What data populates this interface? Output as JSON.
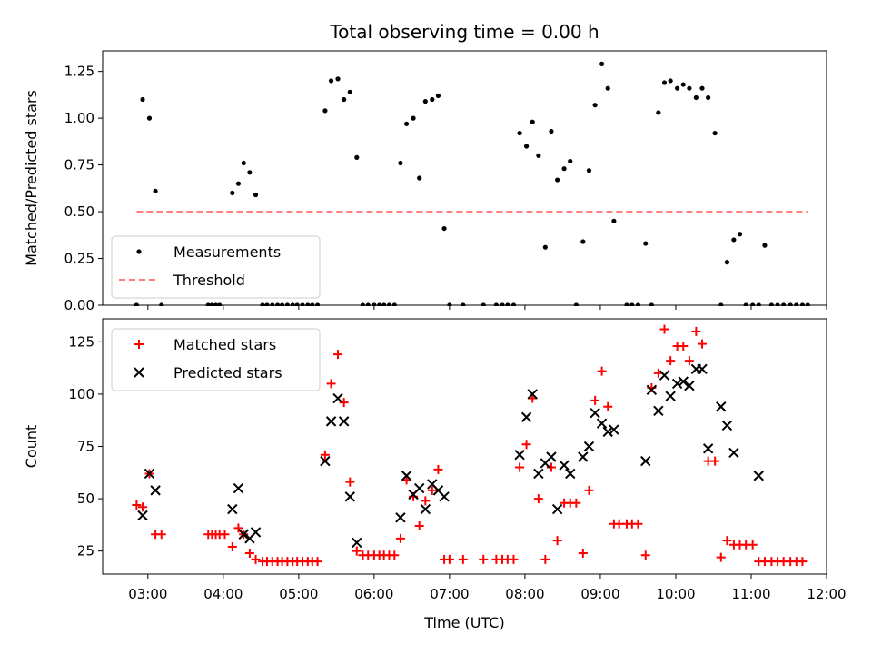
{
  "chart_data": [
    {
      "type": "scatter",
      "title": "Total observing time = 0.00 h",
      "ylabel": "Matched/Predicted stars",
      "xlabel": "",
      "xlim": [
        2.4,
        12.0
      ],
      "ylim": [
        0,
        1.36
      ],
      "yticks": [
        "0.00",
        "0.25",
        "0.50",
        "0.75",
        "1.00",
        "1.25"
      ],
      "legend": {
        "placement": "lower-left",
        "entries": [
          "Measurements",
          "Threshold"
        ]
      },
      "series": [
        {
          "name": "Measurements",
          "marker": "dot",
          "color": "#000000",
          "points": [
            [
              2.85,
              0
            ],
            [
              2.93,
              1.1
            ],
            [
              3.02,
              1.0
            ],
            [
              3.1,
              0.61
            ],
            [
              3.18,
              0
            ],
            [
              3.8,
              0
            ],
            [
              3.85,
              0
            ],
            [
              3.9,
              0
            ],
            [
              3.95,
              0
            ],
            [
              4.12,
              0.6
            ],
            [
              4.2,
              0.65
            ],
            [
              4.27,
              0.76
            ],
            [
              4.35,
              0.71
            ],
            [
              4.43,
              0.59
            ],
            [
              4.52,
              0
            ],
            [
              4.58,
              0
            ],
            [
              4.65,
              0
            ],
            [
              4.72,
              0
            ],
            [
              4.78,
              0
            ],
            [
              4.85,
              0
            ],
            [
              4.92,
              0
            ],
            [
              4.98,
              0
            ],
            [
              5.05,
              0
            ],
            [
              5.12,
              0
            ],
            [
              5.18,
              0
            ],
            [
              5.25,
              0
            ],
            [
              5.35,
              1.04
            ],
            [
              5.43,
              1.2
            ],
            [
              5.52,
              1.21
            ],
            [
              5.6,
              1.1
            ],
            [
              5.68,
              1.14
            ],
            [
              5.77,
              0.79
            ],
            [
              5.85,
              0
            ],
            [
              5.92,
              0
            ],
            [
              6.0,
              0
            ],
            [
              6.07,
              0
            ],
            [
              6.13,
              0
            ],
            [
              6.2,
              0
            ],
            [
              6.27,
              0
            ],
            [
              6.35,
              0.76
            ],
            [
              6.43,
              0.97
            ],
            [
              6.52,
              1.0
            ],
            [
              6.6,
              0.68
            ],
            [
              6.68,
              1.09
            ],
            [
              6.77,
              1.1
            ],
            [
              6.85,
              1.12
            ],
            [
              6.93,
              0.41
            ],
            [
              7.0,
              0
            ],
            [
              7.18,
              0
            ],
            [
              7.45,
              0
            ],
            [
              7.62,
              0
            ],
            [
              7.7,
              0
            ],
            [
              7.77,
              0
            ],
            [
              7.85,
              0
            ],
            [
              7.93,
              0.92
            ],
            [
              8.02,
              0.85
            ],
            [
              8.1,
              0.98
            ],
            [
              8.18,
              0.8
            ],
            [
              8.27,
              0.31
            ],
            [
              8.35,
              0.93
            ],
            [
              8.43,
              0.67
            ],
            [
              8.52,
              0.73
            ],
            [
              8.6,
              0.77
            ],
            [
              8.68,
              0
            ],
            [
              8.77,
              0.34
            ],
            [
              8.85,
              0.72
            ],
            [
              8.93,
              1.07
            ],
            [
              9.02,
              1.29
            ],
            [
              9.1,
              1.16
            ],
            [
              9.18,
              0.45
            ],
            [
              9.35,
              0
            ],
            [
              9.42,
              0
            ],
            [
              9.5,
              0
            ],
            [
              9.6,
              0.33
            ],
            [
              9.68,
              0
            ],
            [
              9.77,
              1.03
            ],
            [
              9.85,
              1.19
            ],
            [
              9.93,
              1.2
            ],
            [
              10.02,
              1.16
            ],
            [
              10.1,
              1.18
            ],
            [
              10.18,
              1.16
            ],
            [
              10.27,
              1.11
            ],
            [
              10.35,
              1.16
            ],
            [
              10.43,
              1.11
            ],
            [
              10.52,
              0.92
            ],
            [
              10.6,
              0
            ],
            [
              10.68,
              0.23
            ],
            [
              10.77,
              0.35
            ],
            [
              10.85,
              0.38
            ],
            [
              10.93,
              0
            ],
            [
              11.02,
              0
            ],
            [
              11.1,
              0
            ],
            [
              11.18,
              0.32
            ],
            [
              11.27,
              0
            ],
            [
              11.35,
              0
            ],
            [
              11.43,
              0
            ],
            [
              11.52,
              0
            ],
            [
              11.6,
              0
            ],
            [
              11.68,
              0
            ],
            [
              11.75,
              0
            ]
          ]
        },
        {
          "name": "Threshold",
          "marker": "dashed-line",
          "color": "#ff7f7f",
          "points": [
            [
              2.85,
              0.5
            ],
            [
              11.75,
              0.5
            ]
          ]
        }
      ]
    },
    {
      "type": "scatter",
      "title": "",
      "ylabel": "Count",
      "xlabel": "Time (UTC)",
      "xlim": [
        2.4,
        12.0
      ],
      "ylim": [
        14,
        136
      ],
      "yticks": [
        "25",
        "50",
        "75",
        "100",
        "125"
      ],
      "xticks": [
        "03:00",
        "04:00",
        "05:00",
        "06:00",
        "07:00",
        "08:00",
        "09:00",
        "10:00",
        "11:00",
        "12:00"
      ],
      "legend": {
        "placement": "upper-left",
        "entries": [
          "Matched stars",
          "Predicted stars"
        ]
      },
      "series": [
        {
          "name": "Matched stars",
          "marker": "plus",
          "color": "#ff0000",
          "points": [
            [
              2.85,
              47
            ],
            [
              2.93,
              46
            ],
            [
              3.02,
              62
            ],
            [
              3.1,
              33
            ],
            [
              3.18,
              33
            ],
            [
              3.8,
              33
            ],
            [
              3.85,
              33
            ],
            [
              3.9,
              33
            ],
            [
              3.95,
              33
            ],
            [
              4.02,
              33
            ],
            [
              4.12,
              27
            ],
            [
              4.2,
              36
            ],
            [
              4.27,
              33
            ],
            [
              4.35,
              24
            ],
            [
              4.43,
              21
            ],
            [
              4.52,
              20
            ],
            [
              4.58,
              20
            ],
            [
              4.65,
              20
            ],
            [
              4.72,
              20
            ],
            [
              4.78,
              20
            ],
            [
              4.85,
              20
            ],
            [
              4.92,
              20
            ],
            [
              4.98,
              20
            ],
            [
              5.05,
              20
            ],
            [
              5.12,
              20
            ],
            [
              5.18,
              20
            ],
            [
              5.25,
              20
            ],
            [
              5.35,
              71
            ],
            [
              5.43,
              105
            ],
            [
              5.52,
              119
            ],
            [
              5.6,
              96
            ],
            [
              5.68,
              58
            ],
            [
              5.77,
              25
            ],
            [
              5.85,
              23
            ],
            [
              5.92,
              23
            ],
            [
              6.0,
              23
            ],
            [
              6.07,
              23
            ],
            [
              6.13,
              23
            ],
            [
              6.2,
              23
            ],
            [
              6.27,
              23
            ],
            [
              6.35,
              31
            ],
            [
              6.43,
              59
            ],
            [
              6.52,
              51
            ],
            [
              6.6,
              37
            ],
            [
              6.68,
              49
            ],
            [
              6.77,
              54
            ],
            [
              6.85,
              64
            ],
            [
              6.93,
              21
            ],
            [
              7.0,
              21
            ],
            [
              7.18,
              21
            ],
            [
              7.45,
              21
            ],
            [
              7.62,
              21
            ],
            [
              7.7,
              21
            ],
            [
              7.77,
              21
            ],
            [
              7.85,
              21
            ],
            [
              7.93,
              65
            ],
            [
              8.02,
              76
            ],
            [
              8.1,
              98
            ],
            [
              8.18,
              50
            ],
            [
              8.27,
              21
            ],
            [
              8.35,
              65
            ],
            [
              8.43,
              30
            ],
            [
              8.52,
              48
            ],
            [
              8.6,
              48
            ],
            [
              8.68,
              48
            ],
            [
              8.77,
              24
            ],
            [
              8.85,
              54
            ],
            [
              8.93,
              97
            ],
            [
              9.02,
              111
            ],
            [
              9.1,
              94
            ],
            [
              9.18,
              38
            ],
            [
              9.25,
              38
            ],
            [
              9.35,
              38
            ],
            [
              9.42,
              38
            ],
            [
              9.5,
              38
            ],
            [
              9.6,
              23
            ],
            [
              9.68,
              103
            ],
            [
              9.77,
              110
            ],
            [
              9.85,
              131
            ],
            [
              9.93,
              116
            ],
            [
              10.02,
              123
            ],
            [
              10.1,
              123
            ],
            [
              10.18,
              116
            ],
            [
              10.27,
              130
            ],
            [
              10.35,
              124
            ],
            [
              10.43,
              68
            ],
            [
              10.52,
              68
            ],
            [
              10.6,
              22
            ],
            [
              10.68,
              30
            ],
            [
              10.77,
              28
            ],
            [
              10.85,
              28
            ],
            [
              10.93,
              28
            ],
            [
              11.02,
              28
            ],
            [
              11.1,
              20
            ],
            [
              11.18,
              20
            ],
            [
              11.27,
              20
            ],
            [
              11.35,
              20
            ],
            [
              11.43,
              20
            ],
            [
              11.52,
              20
            ],
            [
              11.6,
              20
            ],
            [
              11.68,
              20
            ]
          ]
        },
        {
          "name": "Predicted stars",
          "marker": "x",
          "color": "#000000",
          "points": [
            [
              2.93,
              42
            ],
            [
              3.02,
              62
            ],
            [
              3.1,
              54
            ],
            [
              4.12,
              45
            ],
            [
              4.2,
              55
            ],
            [
              4.27,
              33
            ],
            [
              4.35,
              31
            ],
            [
              4.43,
              34
            ],
            [
              5.35,
              68
            ],
            [
              5.43,
              87
            ],
            [
              5.52,
              98
            ],
            [
              5.6,
              87
            ],
            [
              5.68,
              51
            ],
            [
              5.77,
              29
            ],
            [
              6.35,
              41
            ],
            [
              6.43,
              61
            ],
            [
              6.52,
              52
            ],
            [
              6.6,
              55
            ],
            [
              6.68,
              45
            ],
            [
              6.77,
              57
            ],
            [
              6.85,
              54
            ],
            [
              6.93,
              51
            ],
            [
              7.93,
              71
            ],
            [
              8.02,
              89
            ],
            [
              8.1,
              100
            ],
            [
              8.18,
              62
            ],
            [
              8.27,
              67
            ],
            [
              8.35,
              70
            ],
            [
              8.43,
              45
            ],
            [
              8.52,
              66
            ],
            [
              8.6,
              62
            ],
            [
              8.77,
              70
            ],
            [
              8.85,
              75
            ],
            [
              8.93,
              91
            ],
            [
              9.02,
              86
            ],
            [
              9.1,
              82
            ],
            [
              9.18,
              83
            ],
            [
              9.6,
              68
            ],
            [
              9.68,
              102
            ],
            [
              9.77,
              92
            ],
            [
              9.85,
              109
            ],
            [
              9.93,
              99
            ],
            [
              10.02,
              105
            ],
            [
              10.1,
              106
            ],
            [
              10.18,
              104
            ],
            [
              10.27,
              112
            ],
            [
              10.35,
              112
            ],
            [
              10.43,
              74
            ],
            [
              10.6,
              94
            ],
            [
              10.68,
              85
            ],
            [
              10.77,
              72
            ],
            [
              11.1,
              61
            ]
          ]
        }
      ]
    }
  ]
}
